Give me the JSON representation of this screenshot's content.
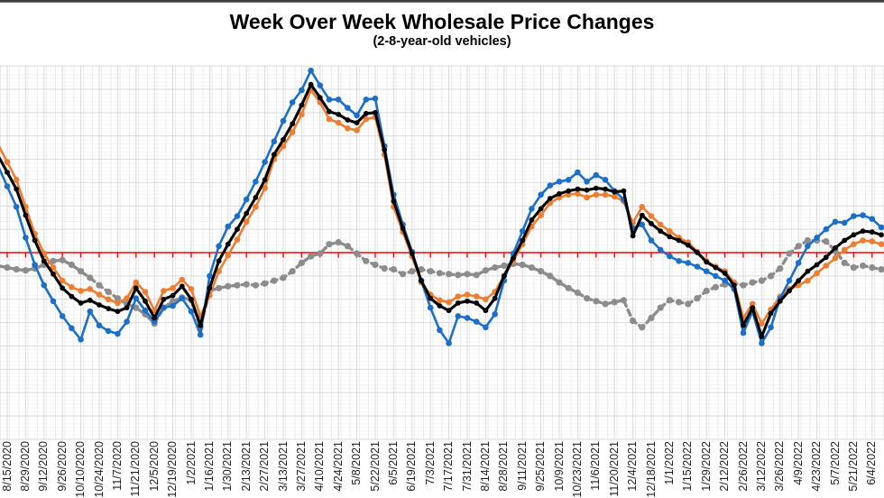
{
  "chart_data": {
    "type": "line",
    "title": "Week Over Week Wholesale Price Changes",
    "subtitle": "(2-8-year-old vehicles)",
    "x_tick_labels": [
      "8/15/2020",
      "8/29/2020",
      "9/12/2020",
      "9/26/2020",
      "10/10/2020",
      "10/24/2020",
      "11/7/2020",
      "11/21/2020",
      "12/5/2020",
      "12/19/2020",
      "1/2/2021",
      "1/16/2021",
      "1/30/2021",
      "2/13/2021",
      "2/27/2021",
      "3/13/2021",
      "3/27/2021",
      "4/10/2021",
      "4/24/2021",
      "5/8/2021",
      "5/22/2021",
      "6/5/2021",
      "6/19/2021",
      "7/3/2021",
      "7/17/2021",
      "7/31/2021",
      "8/14/2021",
      "8/28/2021",
      "9/11/2021",
      "9/25/2021",
      "10/9/2021",
      "10/23/2021",
      "11/6/2021",
      "11/20/2021",
      "12/4/2021",
      "12/18/2021",
      "1/1/2022",
      "1/15/2022",
      "1/29/2022",
      "2/12/2022",
      "2/26/2022",
      "3/12/2022",
      "3/26/2022",
      "4/9/2022",
      "4/23/2022",
      "5/7/2022",
      "5/21/2022",
      "6/4/2022"
    ],
    "x_label_rotation": -90,
    "points_per_label_interval": 2,
    "point_frequency": "weekly",
    "ylim": [
      -2,
      2
    ],
    "y_gridline_step": 0.25,
    "y_axis_labels_visible": false,
    "values_unit": "percent (estimated; 1 gridline = 0.25)",
    "grid": "on",
    "legend": "none",
    "zero_line": {
      "value": 0,
      "color": "#FF0000"
    },
    "gridline_color": "#D9D9D9",
    "series": [
      {
        "name": "gray-dashed",
        "color": "#8C8C8C",
        "line_style": "dashed",
        "marker": "circle",
        "z": 0,
        "values": [
          -0.16,
          -0.18,
          -0.19,
          -0.17,
          -0.13,
          -0.09,
          -0.08,
          -0.13,
          -0.2,
          -0.27,
          -0.35,
          -0.42,
          -0.49,
          -0.55,
          -0.59,
          -0.66,
          -0.76,
          -0.59,
          -0.52,
          -0.48,
          -0.51,
          -0.8,
          -0.41,
          -0.38,
          -0.36,
          -0.35,
          -0.34,
          -0.35,
          -0.33,
          -0.3,
          -0.27,
          -0.2,
          -0.11,
          -0.04,
          -0.01,
          0.09,
          0.11,
          0.07,
          -0.01,
          -0.09,
          -0.13,
          -0.17,
          -0.18,
          -0.23,
          -0.2,
          -0.18,
          -0.2,
          -0.22,
          -0.23,
          -0.24,
          -0.23,
          -0.24,
          -0.19,
          -0.16,
          -0.14,
          -0.12,
          -0.13,
          -0.16,
          -0.2,
          -0.25,
          -0.32,
          -0.38,
          -0.43,
          -0.49,
          -0.52,
          -0.55,
          -0.53,
          -0.51,
          -0.73,
          -0.8,
          -0.7,
          -0.59,
          -0.51,
          -0.53,
          -0.55,
          -0.49,
          -0.41,
          -0.37,
          -0.34,
          -0.33,
          -0.35,
          -0.32,
          -0.3,
          -0.25,
          -0.17,
          -0.01,
          0.07,
          0.13,
          0.13,
          0.12,
          0.02,
          -0.11,
          -0.16,
          -0.14,
          -0.16,
          -0.18
        ]
      },
      {
        "name": "orange",
        "color": "#ED7D31",
        "line_style": "solid",
        "marker": "circle",
        "z": 1,
        "values": [
          0.97,
          0.78,
          0.49,
          0.2,
          -0.01,
          -0.16,
          -0.3,
          -0.37,
          -0.41,
          -0.39,
          -0.45,
          -0.5,
          -0.54,
          -0.49,
          -0.32,
          -0.42,
          -0.62,
          -0.41,
          -0.38,
          -0.29,
          -0.39,
          -0.68,
          -0.46,
          -0.2,
          -0.03,
          0.14,
          0.33,
          0.49,
          0.69,
          1.0,
          1.14,
          1.29,
          1.48,
          1.74,
          1.61,
          1.43,
          1.39,
          1.33,
          1.31,
          1.43,
          1.45,
          1.05,
          0.49,
          0.22,
          -0.04,
          -0.32,
          -0.45,
          -0.51,
          -0.53,
          -0.47,
          -0.45,
          -0.47,
          -0.5,
          -0.42,
          -0.25,
          -0.09,
          0.09,
          0.28,
          0.4,
          0.53,
          0.59,
          0.62,
          0.63,
          0.59,
          0.62,
          0.62,
          0.6,
          0.55,
          0.32,
          0.49,
          0.39,
          0.3,
          0.23,
          0.16,
          0.11,
          0.01,
          -0.09,
          -0.15,
          -0.2,
          -0.32,
          -0.7,
          -0.55,
          -0.76,
          -0.61,
          -0.47,
          -0.39,
          -0.35,
          -0.3,
          -0.22,
          -0.14,
          -0.06,
          0.03,
          0.09,
          0.13,
          0.12,
          0.09
        ]
      },
      {
        "name": "blue",
        "color": "#1B6FC8",
        "line_style": "solid",
        "marker": "circle",
        "z": 2,
        "values": [
          0.71,
          0.49,
          0.16,
          -0.13,
          -0.35,
          -0.52,
          -0.68,
          -0.81,
          -0.93,
          -0.63,
          -0.78,
          -0.84,
          -0.87,
          -0.74,
          -0.49,
          -0.62,
          -0.74,
          -0.59,
          -0.57,
          -0.49,
          -0.63,
          -0.88,
          -0.25,
          0.07,
          0.28,
          0.39,
          0.57,
          0.76,
          0.97,
          1.19,
          1.41,
          1.61,
          1.74,
          1.95,
          1.79,
          1.64,
          1.64,
          1.55,
          1.47,
          1.64,
          1.65,
          1.14,
          0.62,
          0.3,
          0.01,
          -0.3,
          -0.59,
          -0.83,
          -0.97,
          -0.68,
          -0.7,
          -0.74,
          -0.8,
          -0.66,
          -0.3,
          -0.01,
          0.23,
          0.47,
          0.62,
          0.72,
          0.76,
          0.78,
          0.86,
          0.76,
          0.83,
          0.78,
          0.66,
          0.57,
          0.26,
          0.3,
          0.13,
          0.03,
          -0.04,
          -0.09,
          -0.11,
          -0.15,
          -0.2,
          -0.25,
          -0.3,
          -0.39,
          -0.86,
          -0.63,
          -0.97,
          -0.8,
          -0.49,
          -0.3,
          -0.11,
          0.07,
          0.16,
          0.25,
          0.33,
          0.32,
          0.39,
          0.4,
          0.36,
          0.27
        ]
      },
      {
        "name": "black",
        "color": "#000000",
        "line_style": "solid",
        "marker": "circle",
        "z": 3,
        "values": [
          0.86,
          0.68,
          0.4,
          0.13,
          -0.09,
          -0.23,
          -0.38,
          -0.47,
          -0.54,
          -0.51,
          -0.56,
          -0.6,
          -0.63,
          -0.59,
          -0.38,
          -0.52,
          -0.7,
          -0.5,
          -0.46,
          -0.36,
          -0.5,
          -0.78,
          -0.38,
          -0.09,
          0.09,
          0.25,
          0.42,
          0.59,
          0.78,
          1.05,
          1.21,
          1.38,
          1.58,
          1.8,
          1.66,
          1.51,
          1.48,
          1.42,
          1.39,
          1.49,
          1.5,
          1.1,
          0.55,
          0.26,
          -0.01,
          -0.3,
          -0.49,
          -0.57,
          -0.62,
          -0.54,
          -0.52,
          -0.54,
          -0.62,
          -0.49,
          -0.25,
          -0.06,
          0.13,
          0.35,
          0.47,
          0.58,
          0.63,
          0.66,
          0.68,
          0.67,
          0.69,
          0.68,
          0.65,
          0.66,
          0.18,
          0.4,
          0.31,
          0.23,
          0.17,
          0.13,
          0.08,
          0.0,
          -0.1,
          -0.16,
          -0.22,
          -0.35,
          -0.78,
          -0.59,
          -0.9,
          -0.65,
          -0.52,
          -0.41,
          -0.3,
          -0.2,
          -0.13,
          -0.05,
          0.05,
          0.13,
          0.19,
          0.23,
          0.22,
          0.19
        ]
      }
    ]
  }
}
